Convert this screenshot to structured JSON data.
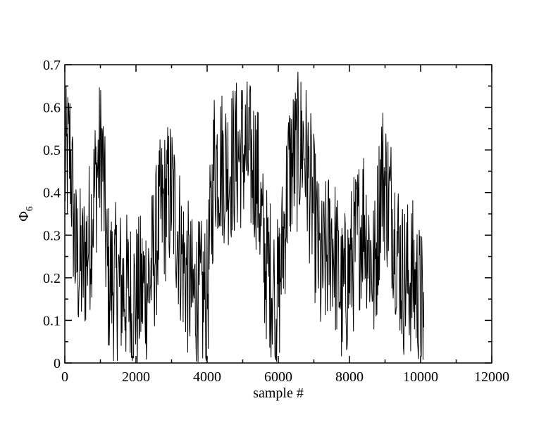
{
  "chart_data": {
    "type": "line",
    "title": "",
    "xlabel": "sample #",
    "ylabel": {
      "base": "Φ",
      "subscript": "6"
    },
    "xlim": [
      0,
      12000
    ],
    "ylim": [
      0,
      0.7
    ],
    "x_ticks": [
      0,
      2000,
      4000,
      6000,
      8000,
      10000,
      12000
    ],
    "y_ticks": [
      0,
      0.1,
      0.2,
      0.3,
      0.4,
      0.5,
      0.6,
      0.7
    ],
    "x_tick_labels": [
      "0",
      "2000",
      "4000",
      "6000",
      "8000",
      "10000",
      "12000"
    ],
    "y_tick_labels": [
      "0",
      "0.1",
      "0.2",
      "0.3",
      "0.4",
      "0.5",
      "0.6",
      "0.7"
    ],
    "grid": false,
    "legend": "none",
    "series": [
      {
        "color": "#000000",
        "x_end": 10100,
        "approx_profile": [
          [
            0,
            0.45
          ],
          [
            150,
            0.5
          ],
          [
            300,
            0.25
          ],
          [
            500,
            0.22
          ],
          [
            700,
            0.3
          ],
          [
            900,
            0.45
          ],
          [
            1050,
            0.5
          ],
          [
            1200,
            0.2
          ],
          [
            1600,
            0.18
          ],
          [
            2000,
            0.15
          ],
          [
            2400,
            0.2
          ],
          [
            2700,
            0.35
          ],
          [
            3000,
            0.4
          ],
          [
            3300,
            0.25
          ],
          [
            3600,
            0.15
          ],
          [
            4000,
            0.15
          ],
          [
            4200,
            0.48
          ],
          [
            4600,
            0.46
          ],
          [
            5000,
            0.5
          ],
          [
            5400,
            0.45
          ],
          [
            5600,
            0.25
          ],
          [
            6000,
            0.15
          ],
          [
            6300,
            0.45
          ],
          [
            6700,
            0.52
          ],
          [
            7000,
            0.35
          ],
          [
            7200,
            0.2
          ],
          [
            7500,
            0.3
          ],
          [
            7800,
            0.15
          ],
          [
            8100,
            0.25
          ],
          [
            8400,
            0.35
          ],
          [
            8700,
            0.2
          ],
          [
            8900,
            0.45
          ],
          [
            9200,
            0.35
          ],
          [
            9500,
            0.2
          ],
          [
            9800,
            0.2
          ],
          [
            10100,
            0.1
          ]
        ]
      }
    ]
  }
}
